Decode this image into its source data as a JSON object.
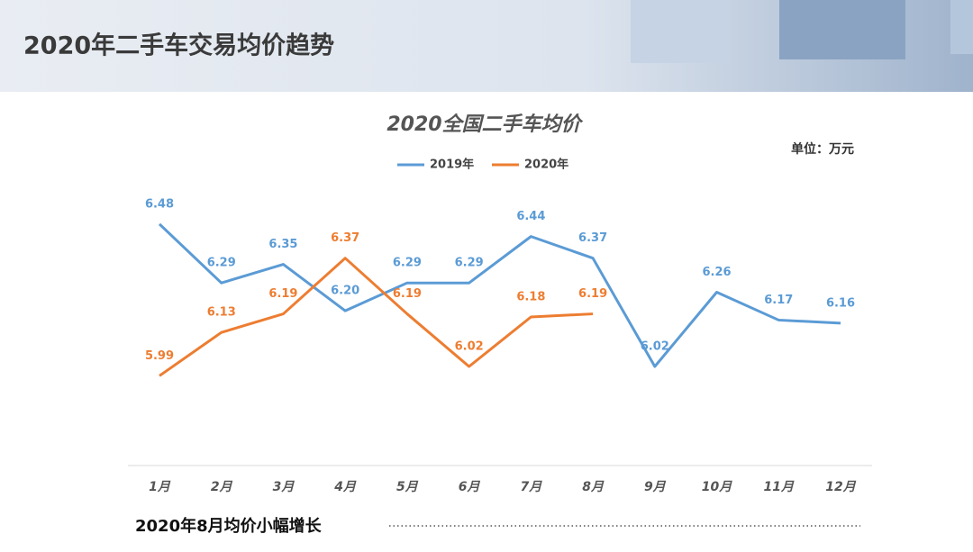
{
  "header": {
    "title": "2020年二手车交易均价趋势"
  },
  "chart_data": {
    "type": "line",
    "title": "2020全国二手车均价",
    "unit_label": "单位：万元",
    "categories": [
      "1月",
      "2月",
      "3月",
      "4月",
      "5月",
      "6月",
      "7月",
      "8月",
      "9月",
      "10月",
      "11月",
      "12月"
    ],
    "series": [
      {
        "name": "2019年",
        "color": "#5b9bd5",
        "values": [
          6.48,
          6.29,
          6.35,
          6.2,
          6.29,
          6.29,
          6.44,
          6.37,
          6.02,
          6.26,
          6.17,
          6.16
        ],
        "value_labels": [
          "6.48",
          "6.29",
          "6.35",
          "6.20",
          "6.29",
          "6.29",
          "6.44",
          "6.37",
          "6.02",
          "6.26",
          "6.17",
          "6.16"
        ]
      },
      {
        "name": "2020年",
        "color": "#ed7d31",
        "values": [
          5.99,
          6.13,
          6.19,
          6.37,
          6.19,
          6.02,
          6.18,
          6.19,
          null,
          null,
          null,
          null
        ],
        "value_labels": [
          "5.99",
          "6.13",
          "6.19",
          "6.37",
          "6.19",
          "6.02",
          "6.18",
          "6.19",
          null,
          null,
          null,
          null
        ]
      }
    ],
    "ylim": [
      5.7,
      6.5
    ],
    "legend": "top",
    "grid": false
  },
  "footer": {
    "text": "2020年8月均价小幅增长"
  }
}
